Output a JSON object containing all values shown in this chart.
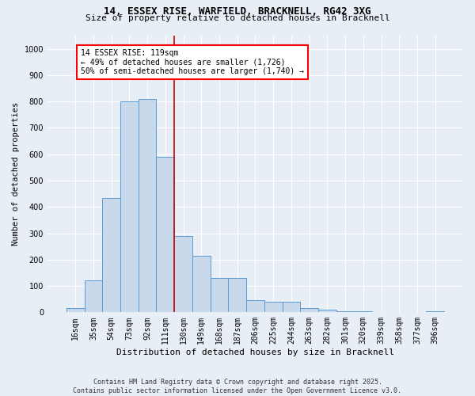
{
  "title_line1": "14, ESSEX RISE, WARFIELD, BRACKNELL, RG42 3XG",
  "title_line2": "Size of property relative to detached houses in Bracknell",
  "xlabel": "Distribution of detached houses by size in Bracknell",
  "ylabel": "Number of detached properties",
  "categories": [
    "16sqm",
    "35sqm",
    "54sqm",
    "73sqm",
    "92sqm",
    "111sqm",
    "130sqm",
    "149sqm",
    "168sqm",
    "187sqm",
    "206sqm",
    "225sqm",
    "244sqm",
    "263sqm",
    "282sqm",
    "301sqm",
    "320sqm",
    "339sqm",
    "358sqm",
    "377sqm",
    "396sqm"
  ],
  "values": [
    15,
    120,
    435,
    800,
    810,
    590,
    290,
    215,
    130,
    130,
    45,
    40,
    40,
    15,
    10,
    5,
    5,
    2,
    2,
    0,
    5
  ],
  "bar_color": "#c9d9ec",
  "bar_edge_color": "#5b9bd5",
  "annotation_line1": "14 ESSEX RISE: 119sqm",
  "annotation_line2": "← 49% of detached houses are smaller (1,726)",
  "annotation_line3": "50% of semi-detached houses are larger (1,740) →",
  "vline_color": "#cc0000",
  "vline_x": 5.5,
  "ylim": [
    0,
    1050
  ],
  "yticks": [
    0,
    100,
    200,
    300,
    400,
    500,
    600,
    700,
    800,
    900,
    1000
  ],
  "background_color": "#e8eef5",
  "plot_bg_color": "#e8eef5",
  "grid_color": "#ffffff",
  "title_fontsize": 9,
  "subtitle_fontsize": 8,
  "footer": "Contains HM Land Registry data © Crown copyright and database right 2025.\nContains public sector information licensed under the Open Government Licence v3.0."
}
